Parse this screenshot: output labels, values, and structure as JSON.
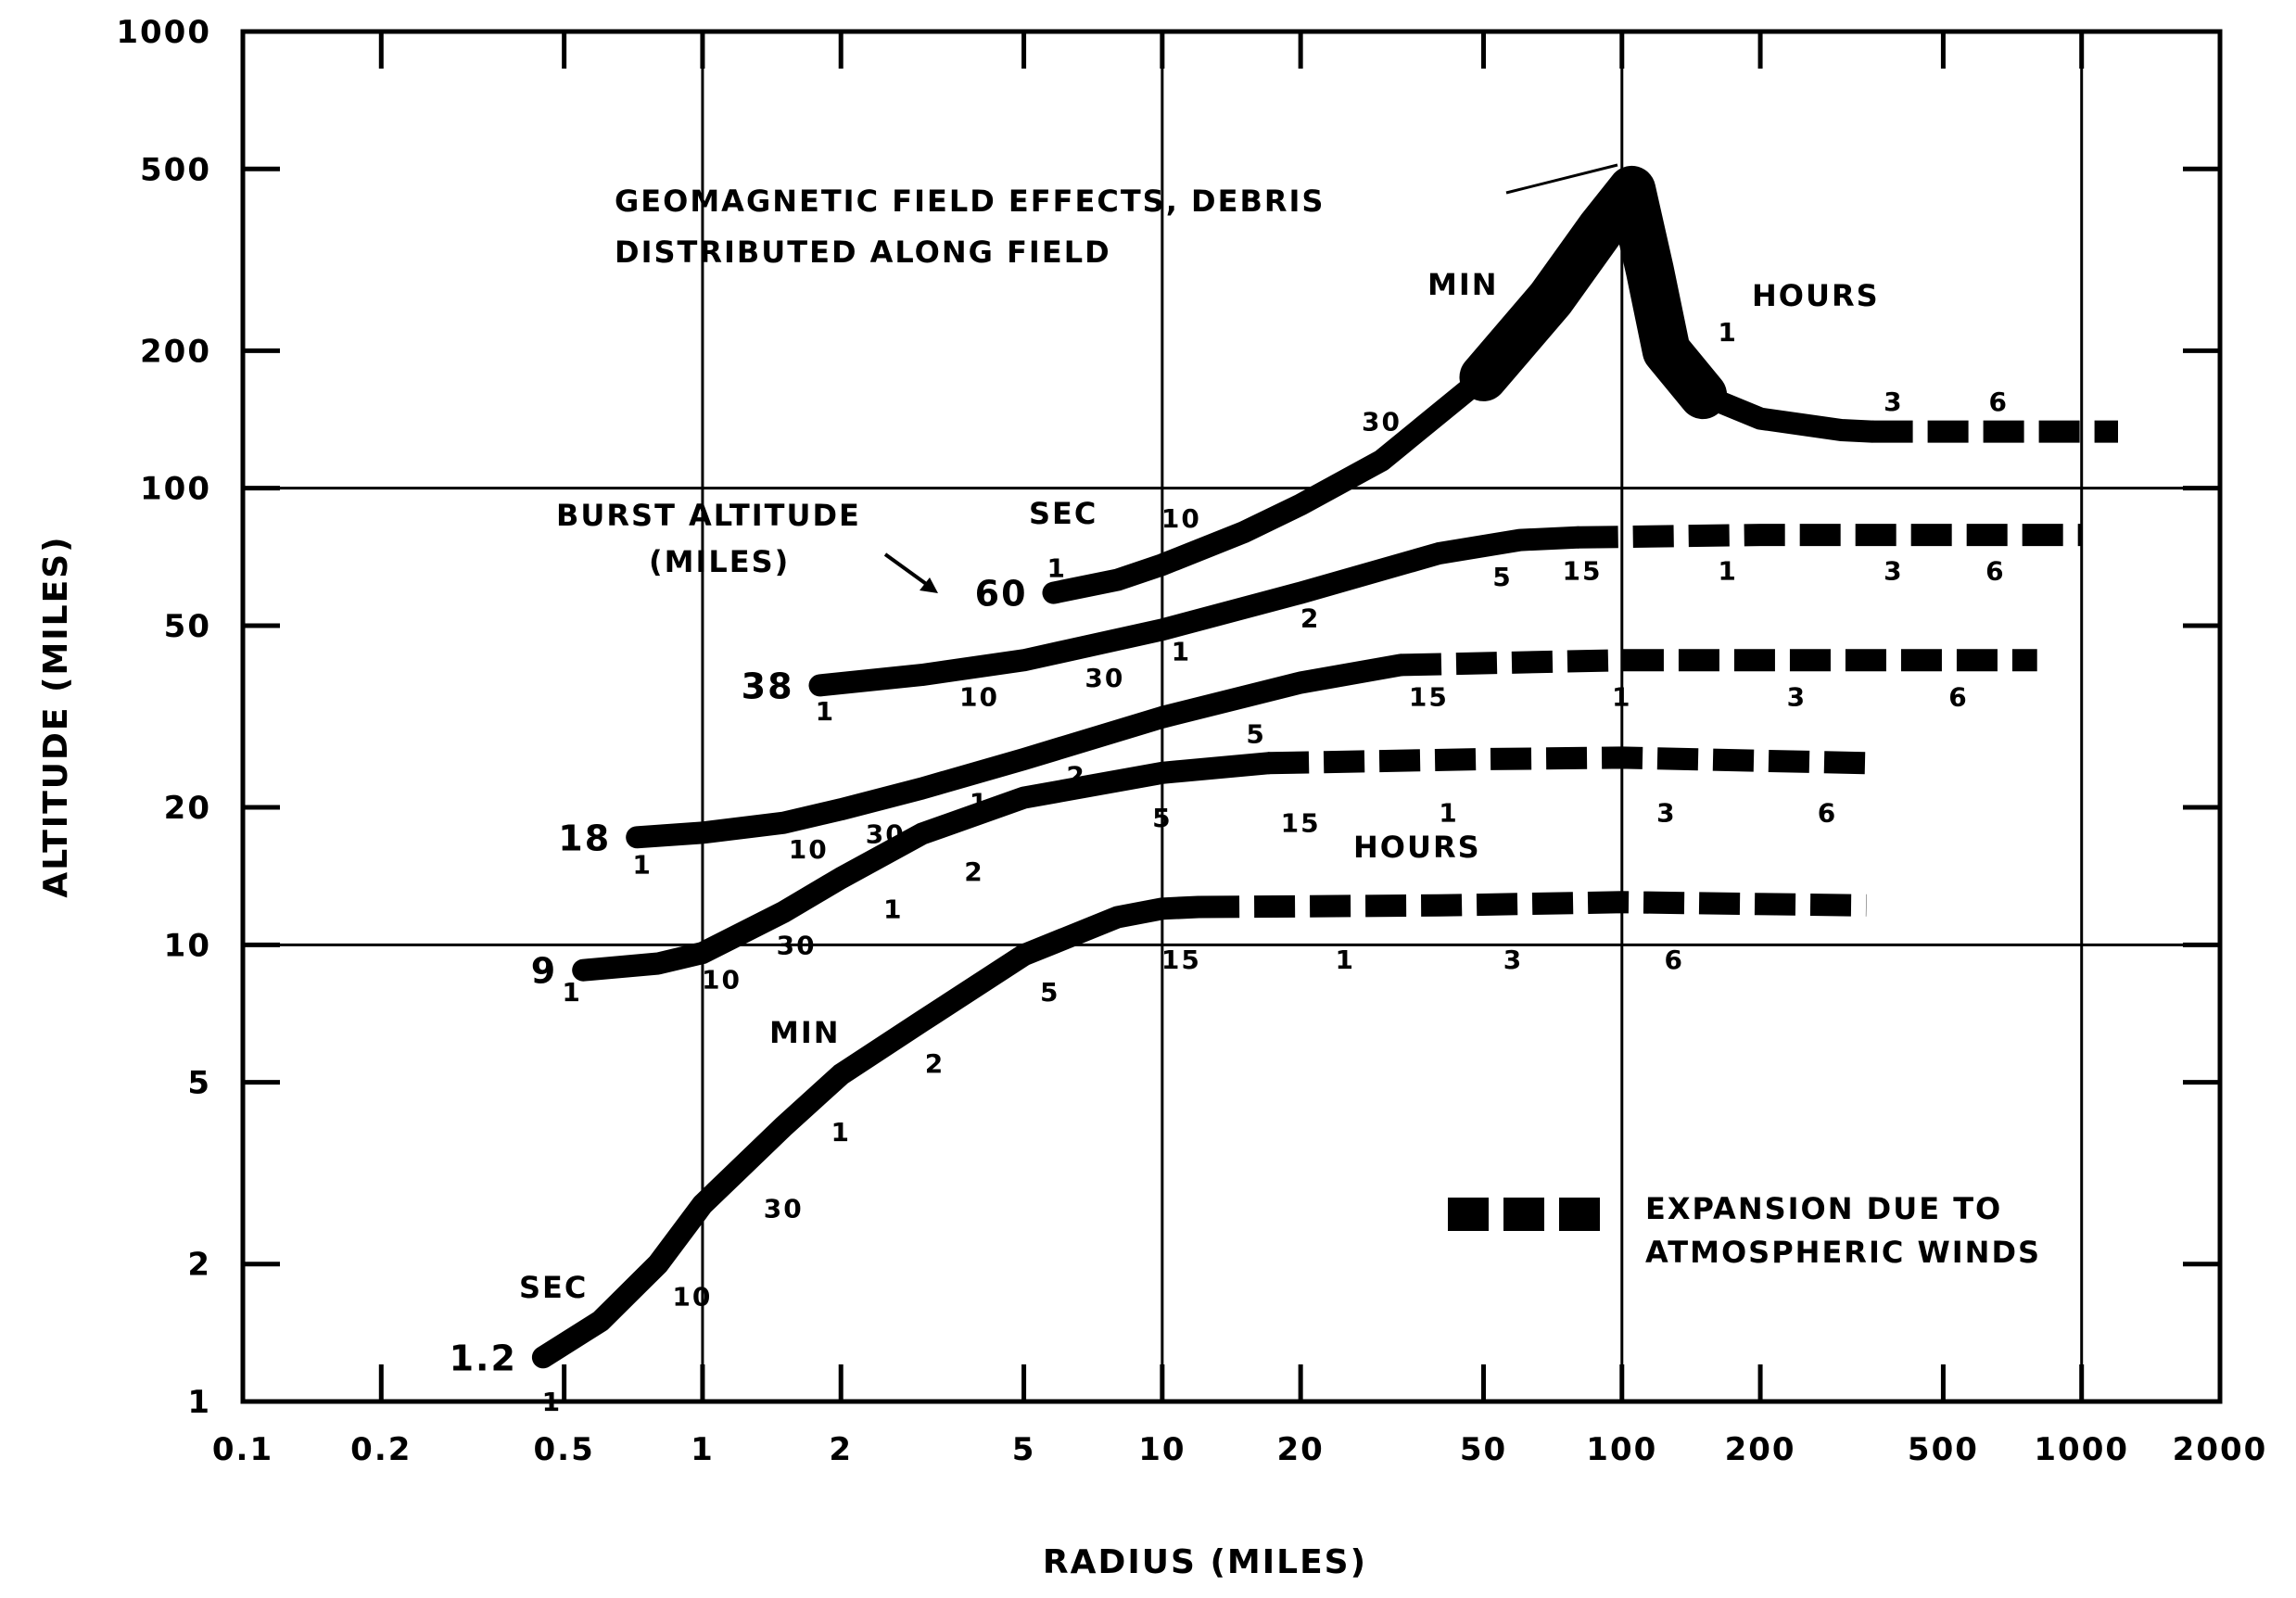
{
  "chart_data": {
    "type": "line",
    "xlabel": "RADIUS (MILES)",
    "ylabel": "ALTITUDE (MILES)",
    "x_scale": "log",
    "y_scale": "log",
    "xlim": [
      0.1,
      2000
    ],
    "ylim": [
      1,
      1000
    ],
    "x_ticks": [
      0.1,
      0.2,
      0.5,
      1,
      2,
      5,
      10,
      20,
      50,
      100,
      200,
      500,
      1000,
      2000
    ],
    "x_tick_labels": [
      "0.1",
      "0.2",
      "0.5",
      "1",
      "2",
      "5",
      "10",
      "20",
      "50",
      "100",
      "200",
      "500",
      "1000",
      "2000"
    ],
    "y_ticks": [
      1,
      2,
      5,
      10,
      20,
      50,
      100,
      200,
      500,
      1000
    ],
    "y_tick_labels": [
      "1",
      "2",
      "5",
      "10",
      "20",
      "50",
      "100",
      "200",
      "500",
      "1000"
    ],
    "grid": "major decades only (x = 1, 10, 100, 1000; y = 10, 100)",
    "series": [
      {
        "name": "1.2",
        "solid": [
          [
            0.45,
            1.25
          ],
          [
            0.6,
            1.5
          ],
          [
            0.8,
            2.0
          ],
          [
            1.0,
            2.7
          ],
          [
            1.5,
            4.0
          ],
          [
            2.0,
            5.2
          ],
          [
            3.0,
            6.8
          ],
          [
            5.0,
            9.5
          ],
          [
            8.0,
            11.5
          ],
          [
            10.0,
            12.0
          ],
          [
            12.0,
            12.1
          ]
        ],
        "dashed": [
          [
            12.0,
            12.1
          ],
          [
            40.0,
            12.2
          ],
          [
            100.0,
            12.4
          ],
          [
            340.0,
            12.2
          ]
        ],
        "time_marks": [
          {
            "label": "1",
            "at": [
              0.47,
              1.0
            ]
          },
          {
            "label": "10",
            "at": [
              0.95,
              1.7
            ]
          },
          {
            "label": "30",
            "at": [
              1.5,
              2.65
            ]
          },
          {
            "label": "1",
            "at": [
              2.0,
              3.9
            ]
          },
          {
            "label": "2",
            "at": [
              3.2,
              5.5
            ]
          },
          {
            "label": "5",
            "at": [
              5.7,
              7.9
            ]
          },
          {
            "label": "15",
            "at": [
              11.0,
              9.3
            ]
          },
          {
            "label": "1",
            "at": [
              25.0,
              9.3
            ]
          },
          {
            "label": "3",
            "at": [
              58.0,
              9.3
            ]
          },
          {
            "label": "6",
            "at": [
              130.0,
              9.3
            ]
          }
        ]
      },
      {
        "name": "9",
        "solid": [
          [
            0.55,
            8.8
          ],
          [
            0.8,
            9.1
          ],
          [
            1.0,
            9.6
          ],
          [
            1.5,
            11.8
          ],
          [
            2.0,
            14.0
          ],
          [
            3.0,
            17.5
          ],
          [
            5.0,
            21.0
          ],
          [
            10.0,
            23.8
          ],
          [
            17.0,
            25.0
          ]
        ],
        "dashed": [
          [
            17.0,
            25.0
          ],
          [
            50.0,
            25.5
          ],
          [
            100.0,
            25.7
          ],
          [
            340.0,
            25.0
          ]
        ],
        "time_marks": [
          {
            "label": "1",
            "at": [
              0.52,
              7.9
            ]
          },
          {
            "label": "10",
            "at": [
              1.1,
              8.4
            ]
          },
          {
            "label": "30",
            "at": [
              1.6,
              10.0
            ]
          },
          {
            "label": "1",
            "at": [
              2.6,
              12.0
            ]
          },
          {
            "label": "2",
            "at": [
              3.9,
              14.5
            ]
          },
          {
            "label": "5",
            "at": [
              10.0,
              19.0
            ]
          },
          {
            "label": "15",
            "at": [
              20.0,
              18.5
            ]
          },
          {
            "label": "1",
            "at": [
              42.0,
              19.5
            ]
          },
          {
            "label": "3",
            "at": [
              125.0,
              19.5
            ]
          },
          {
            "label": "6",
            "at": [
              280.0,
              19.5
            ]
          }
        ]
      },
      {
        "name": "18",
        "solid": [
          [
            0.72,
            17.2
          ],
          [
            1.0,
            17.6
          ],
          [
            1.5,
            18.5
          ],
          [
            2.0,
            19.8
          ],
          [
            3.0,
            22.0
          ],
          [
            5.0,
            25.5
          ],
          [
            10.0,
            31.5
          ],
          [
            20.0,
            37.5
          ],
          [
            33.0,
            41.0
          ]
        ],
        "dashed": [
          [
            33.0,
            41.0
          ],
          [
            100.0,
            42.0
          ],
          [
            800.0,
            42.0
          ]
        ],
        "time_marks": [
          {
            "label": "1",
            "at": [
              0.74,
              15.0
            ]
          },
          {
            "label": "10",
            "at": [
              1.7,
              16.2
            ]
          },
          {
            "label": "30",
            "at": [
              2.5,
              17.5
            ]
          },
          {
            "label": "1",
            "at": [
              4.0,
              20.5
            ]
          },
          {
            "label": "2",
            "at": [
              6.5,
              23.5
            ]
          },
          {
            "label": "5",
            "at": [
              16.0,
              29.0
            ]
          },
          {
            "label": "15",
            "at": [
              38.0,
              35.0
            ]
          },
          {
            "label": "1",
            "at": [
              100.0,
              35.0
            ]
          },
          {
            "label": "3",
            "at": [
              240.0,
              35.0
            ]
          },
          {
            "label": "6",
            "at": [
              540.0,
              35.0
            ]
          }
        ]
      },
      {
        "name": "38",
        "solid": [
          [
            1.8,
            37.0
          ],
          [
            3.0,
            39.0
          ],
          [
            5.0,
            42.0
          ],
          [
            10.0,
            49.0
          ],
          [
            20.0,
            59.0
          ],
          [
            40.0,
            72.0
          ],
          [
            60.0,
            77.0
          ],
          [
            80.0,
            78.0
          ]
        ],
        "dashed": [
          [
            80.0,
            78.0
          ],
          [
            200.0,
            79.0
          ],
          [
            1000.0,
            79.0
          ]
        ],
        "time_marks": [
          {
            "label": "1",
            "at": [
              1.85,
              32.5
            ]
          },
          {
            "label": "10",
            "at": [
              4.0,
              35.0
            ]
          },
          {
            "label": "30",
            "at": [
              7.5,
              38.5
            ]
          },
          {
            "label": "1",
            "at": [
              11.0,
              44.0
            ]
          },
          {
            "label": "2",
            "at": [
              21.0,
              52.0
            ]
          },
          {
            "label": "5",
            "at": [
              55.0,
              64.0
            ]
          },
          {
            "label": "15",
            "at": [
              82.0,
              66.0
            ]
          },
          {
            "label": "1",
            "at": [
              170.0,
              66.0
            ]
          },
          {
            "label": "3",
            "at": [
              390.0,
              66.0
            ]
          },
          {
            "label": "6",
            "at": [
              650.0,
              66.0
            ]
          }
        ]
      },
      {
        "name": "60",
        "solid": [
          [
            5.8,
            59.0
          ],
          [
            8.0,
            63.0
          ],
          [
            10.0,
            68.0
          ],
          [
            15.0,
            80.0
          ],
          [
            20.0,
            92.0
          ],
          [
            30.0,
            115.0
          ],
          [
            50.0,
            175.0
          ],
          [
            70.0,
            260.0
          ],
          [
            90.0,
            370.0
          ],
          [
            105.0,
            450.0
          ],
          [
            115.0,
            300.0
          ],
          [
            125.0,
            200.0
          ],
          [
            150.0,
            160.0
          ],
          [
            200.0,
            142.0
          ],
          [
            300.0,
            134.0
          ],
          [
            350.0,
            133.0
          ]
        ],
        "dashed": [
          [
            350.0,
            133.0
          ],
          [
            1200.0,
            133.0
          ]
        ],
        "time_marks": [
          {
            "label": "1",
            "at": [
              5.9,
              67.0
            ]
          },
          {
            "label": "10",
            "at": [
              11.0,
              86.0
            ]
          },
          {
            "label": "30",
            "at": [
              30.0,
              140.0
            ]
          },
          {
            "label": "1",
            "at": [
              60.0,
              225.0
            ]
          },
          {
            "label": "1",
            "at": [
              170.0,
              220.0
            ]
          },
          {
            "label": "3",
            "at": [
              390.0,
              155.0
            ]
          },
          {
            "label": "6",
            "at": [
              660.0,
              155.0
            ]
          }
        ]
      }
    ],
    "annotations": [
      {
        "id": "burst_altitude",
        "text": [
          "BURST ALTITUDE",
          "(MILES)"
        ]
      },
      {
        "id": "geomagnetic",
        "text": [
          "GEOMAGNETIC FIELD EFFECTS, DEBRIS",
          "DISTRIBUTED ALONG FIELD"
        ]
      },
      {
        "id": "min_top",
        "text": "MIN"
      },
      {
        "id": "hours_top",
        "text": "HOURS"
      },
      {
        "id": "sec_top",
        "text": "SEC"
      },
      {
        "id": "hours_mid",
        "text": "HOURS"
      },
      {
        "id": "min_bottom",
        "text": "MIN"
      },
      {
        "id": "sec_bottom",
        "text": "SEC"
      }
    ],
    "legend": {
      "placement": "lower-right",
      "text": [
        "EXPANSION DUE TO",
        "ATMOSPHERIC WINDS"
      ]
    }
  }
}
